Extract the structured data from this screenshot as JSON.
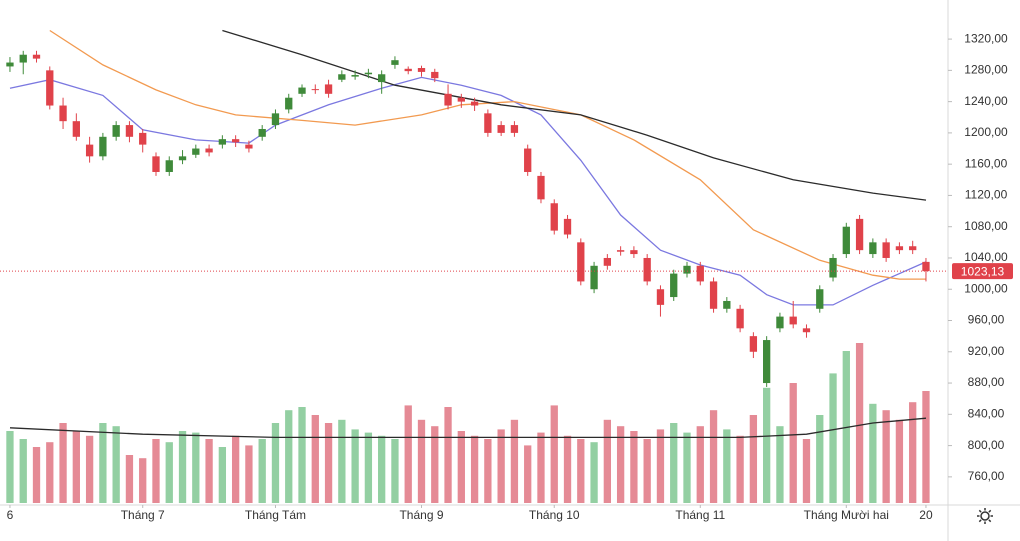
{
  "chart_data": {
    "type": "candlestick",
    "xlim": [
      -0.75,
      70.66
    ],
    "xticks": [
      {
        "value": 0,
        "label": "6"
      },
      {
        "value": 10,
        "label": "Tháng 7"
      },
      {
        "value": 20,
        "label": "Tháng Tám"
      },
      {
        "value": 31,
        "label": "Tháng 9"
      },
      {
        "value": 41,
        "label": "Tháng 10"
      },
      {
        "value": 52,
        "label": "Tháng 11"
      },
      {
        "value": 63,
        "label": "Tháng Mười hai"
      },
      {
        "value": 69,
        "label": "20"
      }
    ],
    "ylim": [
      724,
      1370
    ],
    "yticks": [
      {
        "value": 760,
        "label": "760,00"
      },
      {
        "value": 800,
        "label": "800,00"
      },
      {
        "value": 840,
        "label": "840,00"
      },
      {
        "value": 880,
        "label": "880,00"
      },
      {
        "value": 920,
        "label": "920,00"
      },
      {
        "value": 960,
        "label": "960,00"
      },
      {
        "value": 1000,
        "label": "1000,00"
      },
      {
        "value": 1040,
        "label": "1040,00"
      },
      {
        "value": 1080,
        "label": "1080,00"
      },
      {
        "value": 1120,
        "label": "1120,00"
      },
      {
        "value": 1160,
        "label": "1160,00"
      },
      {
        "value": 1200,
        "label": "1200,00"
      },
      {
        "value": 1240,
        "label": "1240,00"
      },
      {
        "value": 1280,
        "label": "1280,00"
      },
      {
        "value": 1320,
        "label": "1320,00"
      }
    ],
    "up_color": "#3f8a3a",
    "down_color": "#e0424a",
    "volume_up_color": "#93cfa2",
    "volume_down_color": "#e58a95",
    "open": [
      1285,
      1290,
      1300,
      1280,
      1235,
      1215,
      1185,
      1170,
      1195,
      1210,
      1200,
      1170,
      1150,
      1165,
      1172,
      1180,
      1185,
      1192,
      1185,
      1195,
      1210,
      1230,
      1250,
      1256,
      1262,
      1268,
      1272,
      1275,
      1265,
      1287,
      1282,
      1283,
      1278,
      1250,
      1245,
      1240,
      1225,
      1210,
      1210,
      1180,
      1145,
      1110,
      1090,
      1060,
      1000,
      1040,
      1050,
      1050,
      1040,
      1000,
      990,
      1020,
      1030,
      1010,
      975,
      975,
      940,
      880,
      950,
      965,
      950,
      975,
      1015,
      1045,
      1090,
      1045,
      1060,
      1055,
      1055,
      1035
    ],
    "high": [
      1297,
      1305,
      1305,
      1285,
      1245,
      1225,
      1195,
      1200,
      1215,
      1215,
      1205,
      1175,
      1170,
      1178,
      1185,
      1185,
      1197,
      1197,
      1190,
      1210,
      1230,
      1250,
      1262,
      1262,
      1268,
      1280,
      1280,
      1282,
      1280,
      1298,
      1285,
      1286,
      1282,
      1262,
      1250,
      1245,
      1230,
      1215,
      1215,
      1185,
      1150,
      1115,
      1095,
      1065,
      1035,
      1045,
      1055,
      1055,
      1045,
      1005,
      1025,
      1035,
      1035,
      1015,
      990,
      980,
      945,
      940,
      970,
      985,
      955,
      1005,
      1045,
      1085,
      1095,
      1065,
      1065,
      1060,
      1062,
      1040
    ],
    "low": [
      1278,
      1275,
      1290,
      1230,
      1205,
      1190,
      1162,
      1165,
      1190,
      1188,
      1175,
      1145,
      1145,
      1160,
      1168,
      1170,
      1180,
      1182,
      1175,
      1190,
      1205,
      1225,
      1246,
      1250,
      1245,
      1265,
      1268,
      1270,
      1250,
      1282,
      1275,
      1272,
      1265,
      1230,
      1232,
      1228,
      1195,
      1196,
      1195,
      1145,
      1110,
      1070,
      1065,
      1005,
      995,
      1025,
      1043,
      1040,
      1005,
      965,
      985,
      1015,
      1005,
      970,
      970,
      945,
      912,
      875,
      945,
      950,
      938,
      970,
      1010,
      1040,
      1045,
      1040,
      1035,
      1045,
      1045,
      1010
    ],
    "close": [
      1290,
      1300,
      1295,
      1235,
      1215,
      1195,
      1170,
      1195,
      1210,
      1195,
      1185,
      1150,
      1165,
      1170,
      1180,
      1175,
      1192,
      1188,
      1180,
      1205,
      1225,
      1245,
      1258,
      1255,
      1250,
      1275,
      1274,
      1277,
      1275,
      1293,
      1279,
      1278,
      1270,
      1235,
      1240,
      1235,
      1200,
      1200,
      1200,
      1150,
      1115,
      1075,
      1070,
      1010,
      1030,
      1030,
      1048,
      1045,
      1010,
      980,
      1020,
      1030,
      1010,
      975,
      985,
      950,
      920,
      935,
      965,
      955,
      945,
      1000,
      1040,
      1080,
      1050,
      1060,
      1040,
      1050,
      1050,
      1023.13
    ],
    "vlim": [
      0,
      100
    ],
    "volume": [
      45,
      40,
      35,
      38,
      50,
      45,
      42,
      50,
      48,
      30,
      28,
      40,
      38,
      45,
      44,
      40,
      35,
      42,
      36,
      40,
      50,
      58,
      60,
      55,
      50,
      52,
      46,
      44,
      42,
      40,
      61,
      52,
      48,
      60,
      45,
      42,
      40,
      46,
      52,
      36,
      44,
      61,
      42,
      40,
      38,
      52,
      48,
      45,
      40,
      46,
      50,
      44,
      48,
      58,
      46,
      42,
      55,
      72,
      48,
      75,
      40,
      55,
      81,
      95,
      100,
      62,
      58,
      52,
      63,
      70
    ],
    "lines": [
      {
        "color": "#7b78e0",
        "x": [
          0,
          3,
          7,
          10,
          14,
          18,
          20,
          24,
          28,
          31,
          34,
          37,
          40,
          43,
          46,
          49,
          52,
          55,
          57,
          59,
          62,
          65,
          69
        ],
        "values": [
          1257,
          1268,
          1248,
          1204,
          1191,
          1187,
          1210,
          1236,
          1257,
          1271,
          1261,
          1248,
          1223,
          1165,
          1095,
          1050,
          1031,
          1018,
          993,
          980,
          980,
          1005,
          1035
        ]
      },
      {
        "color": "#f29a50",
        "x": [
          3,
          7,
          11,
          14,
          17,
          22,
          26,
          31,
          34,
          38,
          43,
          47,
          52,
          56,
          61,
          65,
          67,
          69
        ],
        "values": [
          1331,
          1287,
          1255,
          1236,
          1223,
          1216,
          1210,
          1223,
          1236,
          1240,
          1223,
          1191,
          1140,
          1076,
          1037,
          1018,
          1013,
          1013
        ]
      },
      {
        "color": "#2b2b2b",
        "x": [
          16,
          22,
          29,
          37,
          43,
          48,
          53,
          59,
          65,
          69
        ],
        "values": [
          1331,
          1300,
          1261,
          1236,
          1223,
          1197,
          1168,
          1140,
          1123,
          1114
        ]
      }
    ],
    "volume_line": {
      "color": "#2b2b2b",
      "x": [
        0,
        10,
        20,
        40,
        55,
        60,
        65,
        69
      ],
      "values": [
        47,
        43,
        41,
        41,
        41,
        43,
        50,
        53
      ]
    },
    "last_price": {
      "value": 1023.13,
      "label": "1023,13",
      "color": "#e0424a"
    }
  }
}
